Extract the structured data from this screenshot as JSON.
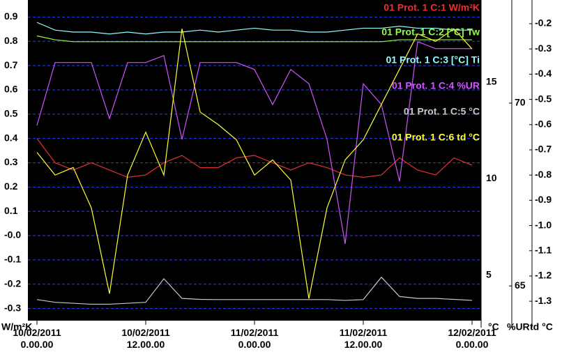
{
  "chart_data": {
    "type": "line",
    "y_label": "W/m²K",
    "y2_label": "°C",
    "y3_label": "%UR",
    "y4_label": "td °C",
    "x": [
      0,
      2,
      4,
      6,
      8,
      10,
      12,
      14,
      16,
      18,
      20,
      22,
      24,
      26,
      28,
      30,
      32,
      34,
      36,
      38,
      40,
      42,
      44,
      46,
      48
    ],
    "xlim": [
      -1,
      49
    ],
    "xticks": [
      {
        "value": 0,
        "label": "10/02/2011 0.00.00"
      },
      {
        "value": 12,
        "label": "10/02/2011 12.00.00"
      },
      {
        "value": 24,
        "label": "11/02/2011 0.00.00"
      },
      {
        "value": 36,
        "label": "11/02/2011 12.00.00"
      },
      {
        "value": 48,
        "label": "12/02/2011 0.00.00"
      }
    ],
    "ylim": [
      -0.35,
      0.97
    ],
    "yticks": [
      0.9,
      0.8,
      0.7,
      0.6,
      0.5,
      0.4,
      0.3,
      0.2,
      0.1,
      {
        "value": 0,
        "label": "-0.0"
      },
      -0.1,
      -0.2,
      -0.3
    ],
    "y2lim": [
      2.65,
      19.26
    ],
    "y2ticks": [
      15,
      10,
      5
    ],
    "y3lim": [
      64.05,
      72.82
    ],
    "y3ticks": [
      70,
      65
    ],
    "y4lim": [
      -1.377,
      -0.106
    ],
    "y4ticks": [
      -0.2,
      -0.3,
      -0.4,
      -0.5,
      -0.6,
      -0.7,
      -0.8,
      -0.9,
      {
        "value": -1,
        "label": "-1.0"
      },
      -1.1,
      -1.2,
      -1.3
    ],
    "grid": true,
    "series": [
      {
        "name": "01 Prot. 1 C:1 W/m²K",
        "color": "#e83030",
        "axis": "y",
        "values": [
          0.4,
          0.3,
          0.27,
          0.3,
          0.27,
          0.24,
          0.25,
          0.3,
          0.33,
          0.28,
          0.28,
          0.32,
          0.33,
          0.3,
          0.27,
          0.3,
          0.28,
          0.25,
          0.24,
          0.25,
          0.32,
          0.27,
          0.25,
          0.32,
          0.29
        ]
      },
      {
        "name": "01 Prot. 1 C:2 [°C] Tw",
        "color": "#90ff48",
        "axis": "y2",
        "values": [
          17.4,
          17.2,
          17.1,
          17.1,
          17.1,
          17.1,
          17.1,
          17.1,
          17.1,
          17.1,
          17.1,
          17.1,
          17.1,
          17.1,
          17.1,
          17.1,
          17.1,
          17.1,
          17.1,
          17.1,
          17.2,
          17.2,
          17.2,
          17.2,
          17.2
        ]
      },
      {
        "name": "01 Prot. 1 C:3 [°C] Ti",
        "color": "#90ffff",
        "axis": "y2",
        "values": [
          18.1,
          17.7,
          17.6,
          17.6,
          17.5,
          17.6,
          17.5,
          17.6,
          17.6,
          17.7,
          17.6,
          17.7,
          17.8,
          17.7,
          17.7,
          17.6,
          17.6,
          17.7,
          17.8,
          17.8,
          17.9,
          17.8,
          17.8,
          17.7,
          17.7
        ]
      },
      {
        "name": "01 Prot. 1 C:4 %UR",
        "color": "#cc55ff",
        "axis": "y3",
        "values": [
          69.39,
          71.11,
          71.11,
          71.11,
          69.58,
          71.11,
          71.11,
          71.3,
          69.01,
          71.11,
          71.11,
          71.11,
          70.92,
          69.96,
          70.92,
          70.53,
          69.01,
          66.15,
          70.53,
          69.96,
          67.86,
          71.68,
          71.49,
          71.49,
          71.49
        ]
      },
      {
        "name": "01 Prot. 1 C:5 °C",
        "color": "#c8c8c8",
        "axis": "y2",
        "values": [
          3.74,
          3.6,
          3.55,
          3.5,
          3.5,
          3.55,
          3.6,
          4.82,
          3.8,
          3.75,
          3.74,
          3.74,
          3.74,
          3.74,
          3.74,
          3.74,
          3.74,
          3.7,
          3.74,
          4.9,
          3.9,
          3.8,
          3.8,
          3.75,
          3.7
        ]
      },
      {
        "name": "01 Prot. 1 C:6 td °C",
        "color": "#ffff33",
        "axis": "y4",
        "values": [
          -0.71,
          -0.8,
          -0.77,
          -0.93,
          -1.27,
          -0.8,
          -0.63,
          -0.8,
          -0.22,
          -0.55,
          -0.6,
          -0.66,
          -0.8,
          -0.74,
          -0.82,
          -1.29,
          -0.93,
          -0.74,
          -0.66,
          -0.52,
          -0.38,
          -0.24,
          -0.27,
          -0.22,
          -0.3
        ]
      }
    ]
  }
}
